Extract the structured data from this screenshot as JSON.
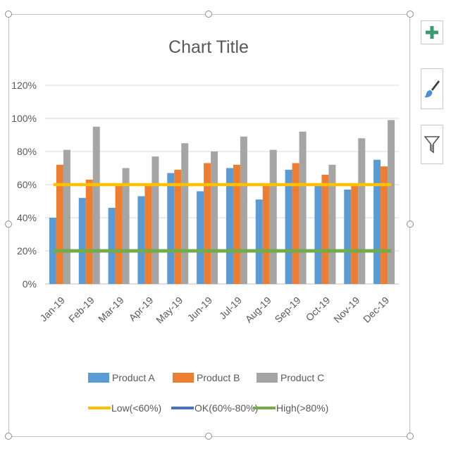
{
  "toolbar": {
    "buttons": [
      {
        "name": "chart-elements-button",
        "icon": "plus-icon"
      },
      {
        "name": "chart-styles-button",
        "icon": "paintbrush-icon"
      },
      {
        "name": "chart-filters-button",
        "icon": "funnel-icon"
      }
    ]
  },
  "chart_data": {
    "type": "bar",
    "title": "Chart Title",
    "xlabel": "",
    "ylabel": "",
    "ylim": [
      0,
      1.2
    ],
    "ytick_labels": [
      "0%",
      "20%",
      "40%",
      "60%",
      "80%",
      "100%",
      "120%"
    ],
    "categories": [
      "Jan-19",
      "Feb-19",
      "Mar-19",
      "Apr-19",
      "May-19",
      "Jun-19",
      "Jul-19",
      "Aug-19",
      "Sep-19",
      "Oct-19",
      "Nov-19",
      "Dec-19"
    ],
    "series": [
      {
        "name": "Product A",
        "type": "bar",
        "color": "#5b9bd5",
        "values": [
          0.4,
          0.52,
          0.46,
          0.53,
          0.67,
          0.56,
          0.7,
          0.51,
          0.69,
          0.6,
          0.57,
          0.75
        ]
      },
      {
        "name": "Product B",
        "type": "bar",
        "color": "#ed7d31",
        "values": [
          0.72,
          0.63,
          0.6,
          0.6,
          0.69,
          0.73,
          0.72,
          0.6,
          0.73,
          0.66,
          0.6,
          0.71
        ]
      },
      {
        "name": "Product C",
        "type": "bar",
        "color": "#a5a5a5",
        "values": [
          0.81,
          0.95,
          0.7,
          0.77,
          0.85,
          0.8,
          0.89,
          0.81,
          0.92,
          0.72,
          0.88,
          0.99
        ]
      },
      {
        "name": "Low(<60%)",
        "type": "line",
        "color": "#ffc000",
        "values": [
          0.6,
          0.6,
          0.6,
          0.6,
          0.6,
          0.6,
          0.6,
          0.6,
          0.6,
          0.6,
          0.6,
          0.6
        ]
      },
      {
        "name": "OK(60%-80%)",
        "type": "line",
        "color": "#4472c4",
        "values": [
          0.2,
          0.2,
          0.2,
          0.2,
          0.2,
          0.2,
          0.2,
          0.2,
          0.2,
          0.2,
          0.2,
          0.2
        ]
      },
      {
        "name": "High(>80%)",
        "type": "line",
        "color": "#70ad47",
        "values": [
          0.2,
          0.2,
          0.2,
          0.2,
          0.2,
          0.2,
          0.2,
          0.2,
          0.2,
          0.2,
          0.2,
          0.2
        ]
      }
    ],
    "grid": true,
    "legend_position": "bottom"
  }
}
